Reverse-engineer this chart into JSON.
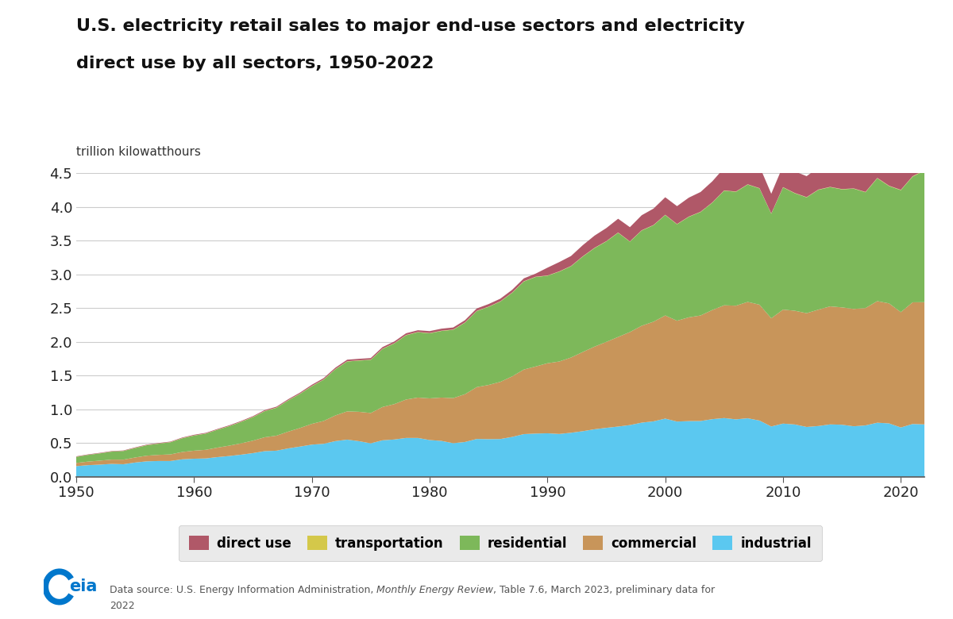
{
  "title_line1": "U.S. electricity retail sales to major end-use sectors and electricity",
  "title_line2": "direct use by all sectors, 1950-2022",
  "ylabel": "trillion kilowatthours",
  "xlim": [
    1950,
    2022
  ],
  "ylim": [
    0,
    4.5
  ],
  "yticks": [
    0.0,
    0.5,
    1.0,
    1.5,
    2.0,
    2.5,
    3.0,
    3.5,
    4.0,
    4.5
  ],
  "xticks": [
    1950,
    1960,
    1970,
    1980,
    1990,
    2000,
    2010,
    2020
  ],
  "colors": {
    "industrial": "#5bc8f0",
    "commercial": "#c8955a",
    "residential": "#7db85a",
    "transportation": "#d4c84a",
    "direct_use": "#b05868"
  },
  "legend_background": "#e5e5e5",
  "years": [
    1950,
    1951,
    1952,
    1953,
    1954,
    1955,
    1956,
    1957,
    1958,
    1959,
    1960,
    1961,
    1962,
    1963,
    1964,
    1965,
    1966,
    1967,
    1968,
    1969,
    1970,
    1971,
    1972,
    1973,
    1974,
    1975,
    1976,
    1977,
    1978,
    1979,
    1980,
    1981,
    1982,
    1983,
    1984,
    1985,
    1986,
    1987,
    1988,
    1989,
    1990,
    1991,
    1992,
    1993,
    1994,
    1995,
    1996,
    1997,
    1998,
    1999,
    2000,
    2001,
    2002,
    2003,
    2004,
    2005,
    2006,
    2007,
    2008,
    2009,
    2010,
    2011,
    2012,
    2013,
    2014,
    2015,
    2016,
    2017,
    2018,
    2019,
    2020,
    2021,
    2022
  ],
  "industrial": [
    0.155,
    0.17,
    0.178,
    0.189,
    0.184,
    0.209,
    0.227,
    0.232,
    0.232,
    0.257,
    0.266,
    0.27,
    0.29,
    0.306,
    0.326,
    0.349,
    0.378,
    0.385,
    0.419,
    0.446,
    0.475,
    0.487,
    0.527,
    0.549,
    0.526,
    0.494,
    0.539,
    0.551,
    0.574,
    0.574,
    0.543,
    0.53,
    0.496,
    0.514,
    0.559,
    0.556,
    0.558,
    0.589,
    0.631,
    0.639,
    0.643,
    0.633,
    0.651,
    0.674,
    0.703,
    0.724,
    0.743,
    0.765,
    0.801,
    0.82,
    0.861,
    0.817,
    0.824,
    0.825,
    0.853,
    0.869,
    0.85,
    0.866,
    0.832,
    0.744,
    0.787,
    0.774,
    0.737,
    0.751,
    0.775,
    0.77,
    0.747,
    0.76,
    0.8,
    0.79,
    0.729,
    0.781,
    0.775
  ],
  "commercial": [
    0.048,
    0.053,
    0.059,
    0.064,
    0.068,
    0.075,
    0.084,
    0.091,
    0.098,
    0.109,
    0.119,
    0.128,
    0.141,
    0.154,
    0.168,
    0.185,
    0.206,
    0.223,
    0.249,
    0.276,
    0.308,
    0.339,
    0.381,
    0.419,
    0.436,
    0.45,
    0.494,
    0.525,
    0.57,
    0.599,
    0.618,
    0.643,
    0.669,
    0.709,
    0.769,
    0.804,
    0.848,
    0.898,
    0.958,
    0.995,
    1.039,
    1.075,
    1.116,
    1.175,
    1.226,
    1.275,
    1.329,
    1.38,
    1.437,
    1.478,
    1.53,
    1.496,
    1.539,
    1.566,
    1.619,
    1.673,
    1.686,
    1.726,
    1.719,
    1.605,
    1.691,
    1.687,
    1.688,
    1.726,
    1.751,
    1.741,
    1.741,
    1.741,
    1.804,
    1.78,
    1.711,
    1.805,
    1.813
  ],
  "residential": [
    0.09,
    0.099,
    0.108,
    0.118,
    0.128,
    0.14,
    0.155,
    0.166,
    0.18,
    0.203,
    0.224,
    0.24,
    0.265,
    0.289,
    0.318,
    0.348,
    0.387,
    0.413,
    0.463,
    0.506,
    0.558,
    0.612,
    0.685,
    0.74,
    0.759,
    0.788,
    0.861,
    0.9,
    0.953,
    0.969,
    0.965,
    0.988,
    1.013,
    1.061,
    1.128,
    1.158,
    1.191,
    1.24,
    1.306,
    1.328,
    1.298,
    1.333,
    1.354,
    1.416,
    1.462,
    1.491,
    1.546,
    1.341,
    1.413,
    1.431,
    1.49,
    1.431,
    1.491,
    1.535,
    1.593,
    1.7,
    1.69,
    1.741,
    1.725,
    1.551,
    1.813,
    1.743,
    1.718,
    1.778,
    1.769,
    1.751,
    1.784,
    1.718,
    1.823,
    1.741,
    1.81,
    1.865,
    1.95
  ],
  "transportation": [
    0.002,
    0.002,
    0.002,
    0.002,
    0.002,
    0.003,
    0.003,
    0.003,
    0.003,
    0.003,
    0.003,
    0.003,
    0.003,
    0.003,
    0.004,
    0.004,
    0.004,
    0.004,
    0.004,
    0.004,
    0.004,
    0.004,
    0.004,
    0.004,
    0.004,
    0.004,
    0.004,
    0.004,
    0.004,
    0.004,
    0.004,
    0.004,
    0.004,
    0.004,
    0.004,
    0.004,
    0.004,
    0.004,
    0.004,
    0.004,
    0.004,
    0.004,
    0.004,
    0.004,
    0.004,
    0.004,
    0.004,
    0.004,
    0.004,
    0.004,
    0.004,
    0.004,
    0.004,
    0.004,
    0.004,
    0.004,
    0.004,
    0.004,
    0.004,
    0.004,
    0.004,
    0.004,
    0.004,
    0.004,
    0.004,
    0.004,
    0.004,
    0.005,
    0.005,
    0.005,
    0.005,
    0.006,
    0.008
  ],
  "direct_use": [
    0.006,
    0.006,
    0.006,
    0.006,
    0.006,
    0.007,
    0.007,
    0.007,
    0.007,
    0.008,
    0.009,
    0.009,
    0.009,
    0.01,
    0.01,
    0.011,
    0.013,
    0.013,
    0.014,
    0.015,
    0.018,
    0.019,
    0.02,
    0.023,
    0.023,
    0.023,
    0.024,
    0.025,
    0.026,
    0.026,
    0.029,
    0.03,
    0.031,
    0.033,
    0.035,
    0.038,
    0.039,
    0.04,
    0.043,
    0.046,
    0.116,
    0.138,
    0.148,
    0.165,
    0.181,
    0.194,
    0.204,
    0.211,
    0.223,
    0.243,
    0.26,
    0.265,
    0.281,
    0.293,
    0.313,
    0.334,
    0.324,
    0.335,
    0.325,
    0.293,
    0.318,
    0.32,
    0.311,
    0.326,
    0.335,
    0.325,
    0.329,
    0.32,
    0.334,
    0.321,
    0.3,
    0.325,
    0.338
  ]
}
